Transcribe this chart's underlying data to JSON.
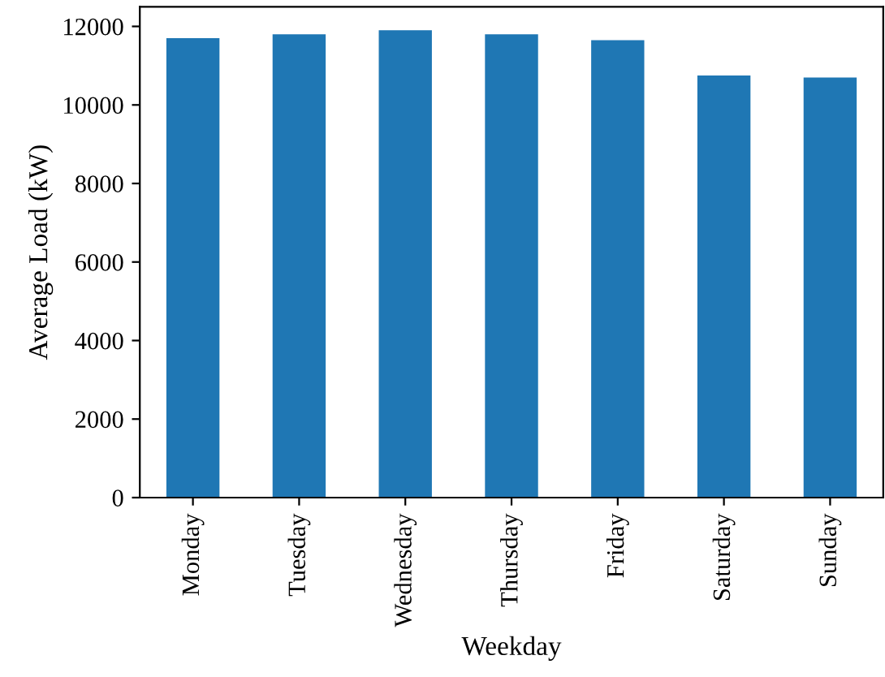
{
  "chart_data": {
    "type": "bar",
    "xlabel": "Weekday",
    "ylabel": "Average Load (kW)",
    "categories": [
      "Monday",
      "Tuesday",
      "Wednesday",
      "Thursday",
      "Friday",
      "Saturday",
      "Sunday"
    ],
    "values": [
      11700,
      11800,
      11900,
      11800,
      11650,
      10750,
      10700
    ],
    "color": "#1f77b4",
    "ylim": [
      0,
      12500
    ],
    "yticks": [
      0,
      2000,
      4000,
      6000,
      8000,
      10000,
      12000
    ],
    "grid": false
  }
}
